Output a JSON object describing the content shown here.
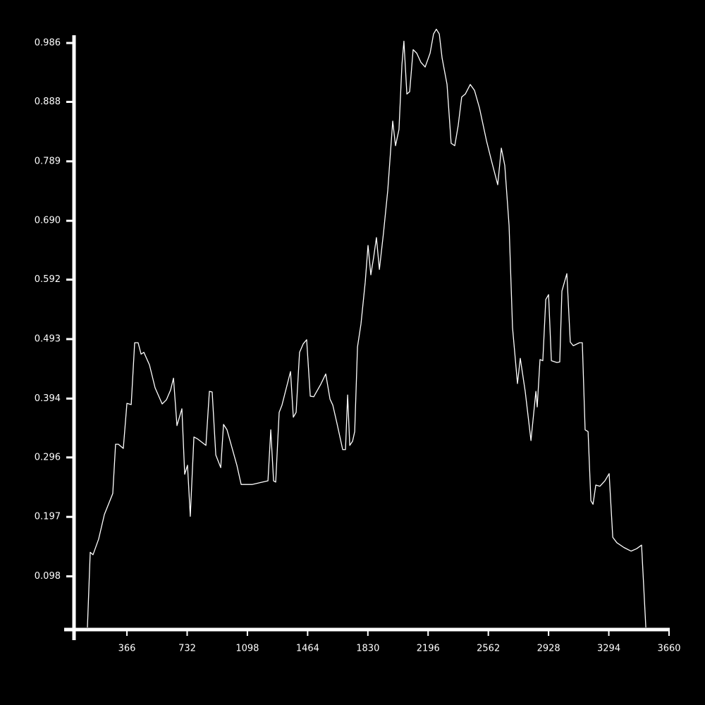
{
  "chart_data": {
    "type": "line",
    "x": [
      126,
      143,
      160,
      194,
      229,
      280,
      297,
      314,
      344,
      366,
      392,
      413,
      434,
      452,
      469,
      503,
      537,
      580,
      606,
      631,
      649,
      670,
      700,
      717,
      734,
      751,
      773,
      794,
      846,
      867,
      884,
      906,
      936,
      953,
      974,
      1034,
      1060,
      1128,
      1223,
      1240,
      1257,
      1270,
      1291,
      1308,
      1360,
      1377,
      1394,
      1415,
      1437,
      1458,
      1480,
      1501,
      1544,
      1574,
      1600,
      1617,
      1642,
      1677,
      1694,
      1707,
      1720,
      1737,
      1750,
      1767,
      1788,
      1814,
      1831,
      1848,
      1865,
      1882,
      1900,
      1925,
      1951,
      1981,
      1998,
      2019,
      2037,
      2049,
      2067,
      2084,
      2105,
      2127,
      2152,
      2178,
      2208,
      2229,
      2246,
      2264,
      2281,
      2311,
      2336,
      2358,
      2379,
      2400,
      2422,
      2452,
      2478,
      2508,
      2551,
      2581,
      2619,
      2641,
      2662,
      2688,
      2709,
      2739,
      2756,
      2786,
      2821,
      2851,
      2859,
      2876,
      2893,
      2911,
      2928,
      2945,
      2979,
      2996,
      3009,
      3039,
      3060,
      3078,
      3116,
      3133,
      3150,
      3168,
      3185,
      3198,
      3215,
      3240,
      3270,
      3296,
      3318,
      3343,
      3386,
      3429,
      3463,
      3493,
      3519
    ],
    "series": [
      {
        "color": "#ffffff",
        "values": [
          0.013,
          0.138,
          0.134,
          0.16,
          0.201,
          0.236,
          0.318,
          0.318,
          0.311,
          0.386,
          0.384,
          0.487,
          0.487,
          0.468,
          0.471,
          0.45,
          0.412,
          0.385,
          0.392,
          0.408,
          0.428,
          0.349,
          0.377,
          0.268,
          0.283,
          0.198,
          0.33,
          0.327,
          0.316,
          0.406,
          0.405,
          0.3,
          0.279,
          0.351,
          0.342,
          0.283,
          0.251,
          0.251,
          0.257,
          0.342,
          0.257,
          0.255,
          0.371,
          0.383,
          0.439,
          0.363,
          0.371,
          0.471,
          0.485,
          0.492,
          0.398,
          0.397,
          0.418,
          0.435,
          0.393,
          0.383,
          0.353,
          0.309,
          0.309,
          0.4,
          0.316,
          0.323,
          0.339,
          0.48,
          0.518,
          0.588,
          0.649,
          0.6,
          0.629,
          0.662,
          0.609,
          0.67,
          0.741,
          0.856,
          0.815,
          0.842,
          0.95,
          0.989,
          0.901,
          0.905,
          0.975,
          0.969,
          0.954,
          0.946,
          0.969,
          1.001,
          1.009,
          1.001,
          0.961,
          0.917,
          0.819,
          0.815,
          0.849,
          0.896,
          0.901,
          0.917,
          0.907,
          0.878,
          0.823,
          0.79,
          0.75,
          0.811,
          0.782,
          0.682,
          0.512,
          0.419,
          0.461,
          0.406,
          0.324,
          0.406,
          0.38,
          0.459,
          0.457,
          0.559,
          0.567,
          0.457,
          0.454,
          0.455,
          0.573,
          0.602,
          0.488,
          0.482,
          0.487,
          0.487,
          0.342,
          0.339,
          0.224,
          0.218,
          0.25,
          0.248,
          0.257,
          0.269,
          0.163,
          0.154,
          0.146,
          0.14,
          0.144,
          0.15,
          0.013
        ]
      }
    ],
    "xlim": [
      0,
      3660
    ],
    "xticks": [
      366,
      732,
      1098,
      1464,
      1830,
      2196,
      2562,
      2928,
      3294,
      3660
    ],
    "ylim": [
      0,
      0.986
    ],
    "yticks": [
      0.098,
      0.197,
      0.296,
      0.394,
      0.493,
      0.592,
      {
        "value": 0.69,
        "label": "0.690"
      },
      0.789,
      0.888,
      0.986
    ]
  }
}
